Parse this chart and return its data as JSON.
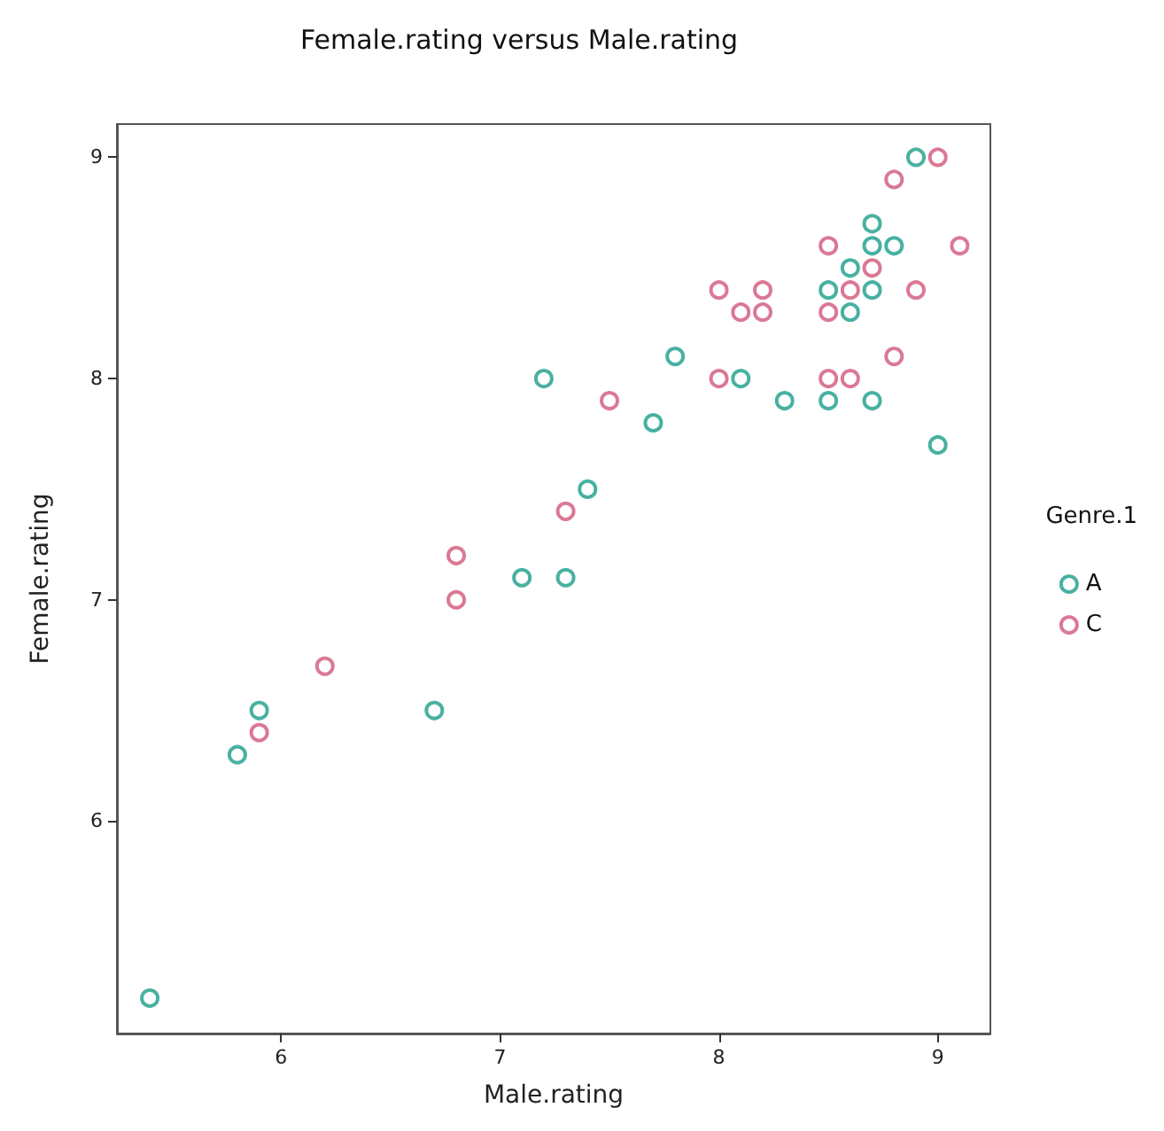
{
  "chart_data": {
    "type": "scatter",
    "title": "Female.rating versus Male.rating",
    "xlabel": "Male.rating",
    "ylabel": "Female.rating",
    "legend_title": "Genre.1",
    "legend": "right",
    "marker": "circle",
    "grid": false,
    "xlim": [
      5.25,
      9.24
    ],
    "xticks": [
      6,
      7,
      8,
      9
    ],
    "ylim": [
      5.04,
      9.15
    ],
    "yticks": [
      6,
      7,
      8,
      9
    ],
    "series": [
      {
        "name": "A",
        "color": "#1a9e8a",
        "x": [
          5.4,
          5.8,
          5.9,
          6.7,
          7.1,
          7.3,
          7.4,
          7.7,
          7.2,
          7.8,
          8.1,
          8.3,
          8.5,
          8.7,
          9.0,
          8.5,
          8.6,
          8.6,
          8.7,
          8.7,
          8.7,
          8.8,
          8.9
        ],
        "values": [
          5.2,
          6.3,
          6.5,
          6.5,
          7.1,
          7.1,
          7.5,
          7.8,
          8.0,
          8.1,
          8.0,
          7.9,
          7.9,
          7.9,
          7.7,
          8.4,
          8.3,
          8.5,
          8.4,
          8.6,
          8.7,
          8.6,
          9.0
        ]
      },
      {
        "name": "C",
        "color": "#d1587a",
        "x": [
          5.9,
          6.2,
          6.8,
          6.8,
          7.3,
          7.5,
          8.0,
          8.0,
          8.1,
          8.2,
          8.2,
          8.5,
          8.6,
          8.5,
          8.5,
          8.6,
          8.7,
          8.8,
          8.8,
          8.9,
          9.0,
          9.1
        ],
        "values": [
          6.4,
          6.7,
          7.0,
          7.2,
          7.4,
          7.9,
          8.0,
          8.4,
          8.3,
          8.3,
          8.4,
          8.0,
          8.0,
          8.3,
          8.6,
          8.4,
          8.5,
          8.1,
          8.9,
          8.4,
          9.0,
          8.6
        ]
      }
    ]
  }
}
